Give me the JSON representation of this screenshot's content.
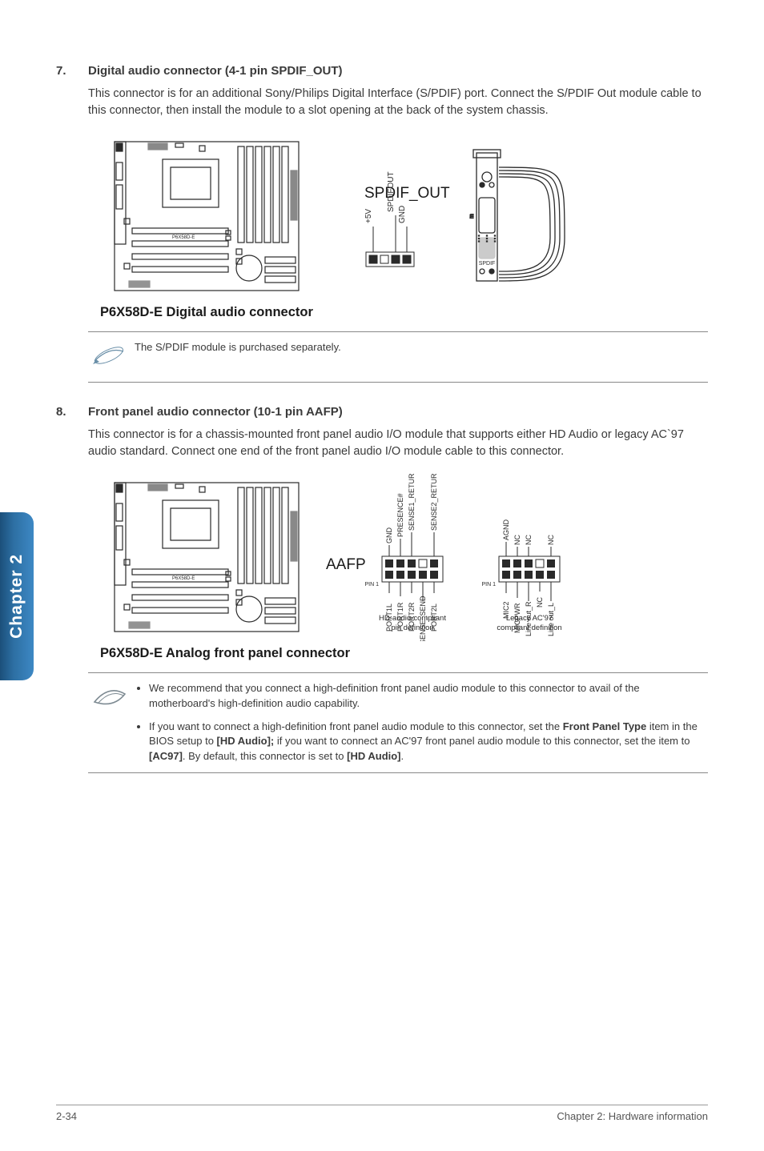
{
  "sideTab": "Chapter 2",
  "section7": {
    "num": "7.",
    "title": "Digital audio connector (4-1 pin SPDIF_OUT)",
    "body": "This connector is for an additional Sony/Philips Digital Interface (S/PDIF) port. Connect the S/PDIF Out module cable to this connector, then install the module to a slot opening at the back of the system chassis.",
    "diagram": {
      "boardLabel": "P6X58D-E",
      "connLabel": "SPDIF_OUT",
      "pins": [
        "+5V",
        "",
        "SPDIFOUT",
        "GND"
      ],
      "caption": "P6X58D-E Digital audio connector"
    },
    "note": "The S/PDIF module is purchased separately."
  },
  "section8": {
    "num": "8.",
    "title": "Front panel audio connector (10-1 pin AAFP)",
    "body": "This connector is for a chassis-mounted front panel audio I/O module that supports either HD Audio or legacy AC`97 audio standard. Connect one end of the front panel audio I/O module cable to this connector.",
    "diagram": {
      "boardLabel": "P6X58D-E",
      "connLabel": "AAFP",
      "pin1Label": "PIN 1",
      "hdTop": [
        "GND",
        "PRESENCE#",
        "SENSE1_RETUR",
        "",
        "SENSE2_RETUR"
      ],
      "hdBot": [
        "PORT1L",
        "PORT1R",
        "PORT2R",
        "SENSE_SEND",
        "PORT2L"
      ],
      "acTop": [
        "AGND",
        "NC",
        "NC",
        "",
        "NC"
      ],
      "acBot": [
        "MIC2",
        "MICPWR",
        "Line out_R",
        "NC",
        "Line out_L"
      ],
      "hdCaption": "HD-audio-compliant\npin definition",
      "acCaption": "Legacy AC'97\ncompliant definition",
      "caption": "P6X58D-E Analog front panel connector"
    },
    "notes": [
      "We recommend that you connect a high-definition front panel audio module to this connector to avail of the motherboard's high-definition audio capability.",
      "If you want to connect a high-definition front panel audio module to this connector, set the <b>Front Panel Type</b> item in the BIOS setup to <b>[HD Audio];</b> if you want to connect an AC'97 front panel audio module to this connector, set the item to <b>[AC97]</b>. By default, this connector is set to <b>[HD Audio]</b>."
    ]
  },
  "footer": {
    "left": "2-34",
    "right": "Chapter 2: Hardware information"
  },
  "colors": {
    "stroke": "#2a2a2a",
    "lightFill": "#ffffff"
  }
}
